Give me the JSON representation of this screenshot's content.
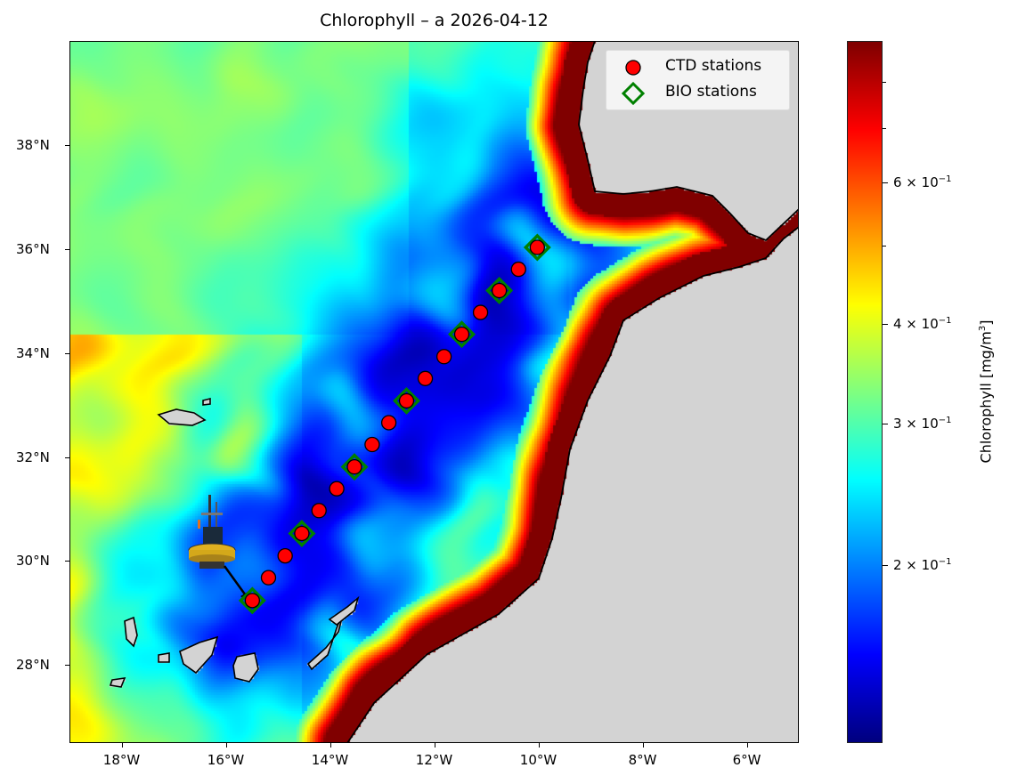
{
  "title": "Chlorophyll – a 2026-04-12",
  "map": {
    "lon_range": [
      -19,
      -5
    ],
    "lat_range": [
      26.5,
      40
    ],
    "x_ticks": [
      "18°W",
      "16°W",
      "14°W",
      "12°W",
      "10°W",
      "8°W",
      "6°W"
    ],
    "x_tick_values": [
      -18,
      -16,
      -14,
      -12,
      -10,
      -8,
      -6
    ],
    "y_ticks": [
      "28°N",
      "30°N",
      "32°N",
      "34°N",
      "36°N",
      "38°N"
    ],
    "y_tick_values": [
      28,
      30,
      32,
      34,
      36,
      38
    ],
    "land_color": "#d3d3d3",
    "colormap": "jet",
    "image": "buoy"
  },
  "legend": {
    "placement": "upper right",
    "items": [
      {
        "label": "CTD stations",
        "marker": "circle",
        "color": "#ff0000",
        "edge": "#000000"
      },
      {
        "label": "BIO stations",
        "marker": "diamond",
        "color": "none",
        "edge": "#008000"
      }
    ]
  },
  "stations": {
    "ctd": [
      [
        -15.49,
        29.24
      ],
      [
        -15.18,
        29.68
      ],
      [
        -14.86,
        30.1
      ],
      [
        -14.54,
        30.53
      ],
      [
        -14.21,
        30.97
      ],
      [
        -13.87,
        31.39
      ],
      [
        -13.53,
        31.81
      ],
      [
        -13.19,
        32.24
      ],
      [
        -12.87,
        32.66
      ],
      [
        -12.53,
        33.08
      ],
      [
        -12.17,
        33.51
      ],
      [
        -11.81,
        33.93
      ],
      [
        -11.47,
        34.36
      ],
      [
        -11.11,
        34.78
      ],
      [
        -10.75,
        35.2
      ],
      [
        -10.38,
        35.61
      ],
      [
        -10.02,
        36.03
      ]
    ],
    "bio": [
      [
        -15.49,
        29.24
      ],
      [
        -14.54,
        30.53
      ],
      [
        -13.53,
        31.81
      ],
      [
        -12.53,
        33.08
      ],
      [
        -11.47,
        34.36
      ],
      [
        -10.75,
        35.2
      ],
      [
        -10.02,
        36.03
      ]
    ]
  },
  "colorbar": {
    "label": "Chlorophyll [mg/m",
    "label_sup": "3",
    "label_end": "]",
    "scale": "log",
    "range": [
      0.12,
      0.9
    ],
    "ticks": [
      {
        "value": 0.2,
        "mant": "2 × 10",
        "exp": "−1"
      },
      {
        "value": 0.3,
        "mant": "3 × 10",
        "exp": "−1"
      },
      {
        "value": 0.4,
        "mant": "4 × 10",
        "exp": "−1"
      },
      {
        "value": 0.6,
        "mant": "6 × 10",
        "exp": "−1"
      }
    ],
    "minor_ticks": [
      0.5,
      0.7,
      0.8
    ]
  }
}
